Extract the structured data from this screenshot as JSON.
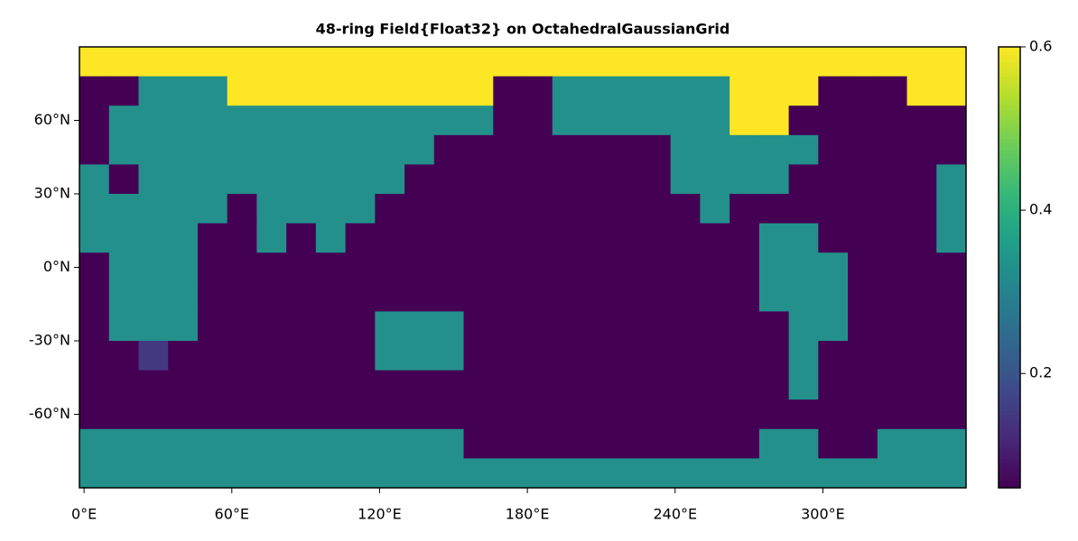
{
  "chart_data": {
    "type": "heatmap",
    "title": "48-ring Field{Float32} on OctahedralGaussianGrid",
    "xbins": [
      -1.875,
      10.125,
      22.125,
      34.125,
      46.125,
      58.125,
      70.125,
      82.125,
      94.125,
      106.125,
      118.125,
      130.125,
      142.125,
      154.125,
      166.125,
      178.125,
      190.125,
      202.125,
      214.125,
      226.125,
      238.125,
      250.125,
      262.125,
      274.125,
      286.125,
      298.125,
      310.125,
      322.125,
      334.125,
      346.125,
      358.125
    ],
    "ybins": [
      90,
      78,
      66,
      54,
      42,
      30,
      18,
      6,
      -6,
      -18,
      -30,
      -42,
      -54,
      -66,
      -78,
      -90
    ],
    "values": [
      [
        0.6,
        0.6,
        0.6,
        0.6,
        0.6,
        0.6,
        0.6,
        0.6,
        0.6,
        0.6,
        0.6,
        0.6,
        0.6,
        0.6,
        0.6,
        0.6,
        0.6,
        0.6,
        0.6,
        0.6,
        0.6,
        0.6,
        0.6,
        0.6,
        0.6,
        0.6,
        0.6,
        0.6,
        0.6,
        0.6
      ],
      [
        0.06,
        0.06,
        0.33,
        0.33,
        0.33,
        0.6,
        0.6,
        0.6,
        0.6,
        0.6,
        0.6,
        0.6,
        0.6,
        0.6,
        0.06,
        0.06,
        0.33,
        0.33,
        0.33,
        0.33,
        0.33,
        0.33,
        0.6,
        0.6,
        0.6,
        0.06,
        0.06,
        0.06,
        0.6,
        0.6
      ],
      [
        0.06,
        0.33,
        0.33,
        0.33,
        0.33,
        0.33,
        0.33,
        0.33,
        0.33,
        0.33,
        0.33,
        0.33,
        0.33,
        0.33,
        0.06,
        0.06,
        0.33,
        0.33,
        0.33,
        0.33,
        0.33,
        0.33,
        0.6,
        0.6,
        0.06,
        0.06,
        0.06,
        0.06,
        0.06,
        0.06
      ],
      [
        0.06,
        0.33,
        0.33,
        0.33,
        0.33,
        0.33,
        0.33,
        0.33,
        0.33,
        0.33,
        0.33,
        0.33,
        0.06,
        0.06,
        0.06,
        0.06,
        0.06,
        0.06,
        0.06,
        0.06,
        0.33,
        0.33,
        0.33,
        0.33,
        0.33,
        0.06,
        0.06,
        0.06,
        0.06,
        0.06
      ],
      [
        0.33,
        0.06,
        0.33,
        0.33,
        0.33,
        0.33,
        0.33,
        0.33,
        0.33,
        0.33,
        0.33,
        0.06,
        0.06,
        0.06,
        0.06,
        0.06,
        0.06,
        0.06,
        0.06,
        0.06,
        0.33,
        0.33,
        0.33,
        0.33,
        0.06,
        0.06,
        0.06,
        0.06,
        0.06,
        0.33
      ],
      [
        0.33,
        0.33,
        0.33,
        0.33,
        0.33,
        0.06,
        0.33,
        0.33,
        0.33,
        0.33,
        0.06,
        0.06,
        0.06,
        0.06,
        0.06,
        0.06,
        0.06,
        0.06,
        0.06,
        0.06,
        0.06,
        0.33,
        0.06,
        0.06,
        0.06,
        0.06,
        0.06,
        0.06,
        0.06,
        0.33
      ],
      [
        0.33,
        0.33,
        0.33,
        0.33,
        0.06,
        0.06,
        0.33,
        0.06,
        0.33,
        0.06,
        0.06,
        0.06,
        0.06,
        0.06,
        0.06,
        0.06,
        0.06,
        0.06,
        0.06,
        0.06,
        0.06,
        0.06,
        0.06,
        0.33,
        0.33,
        0.06,
        0.06,
        0.06,
        0.06,
        0.33
      ],
      [
        0.06,
        0.33,
        0.33,
        0.33,
        0.06,
        0.06,
        0.06,
        0.06,
        0.06,
        0.06,
        0.06,
        0.06,
        0.06,
        0.06,
        0.06,
        0.06,
        0.06,
        0.06,
        0.06,
        0.06,
        0.06,
        0.06,
        0.06,
        0.33,
        0.33,
        0.33,
        0.06,
        0.06,
        0.06,
        0.06
      ],
      [
        0.06,
        0.33,
        0.33,
        0.33,
        0.06,
        0.06,
        0.06,
        0.06,
        0.06,
        0.06,
        0.06,
        0.06,
        0.06,
        0.06,
        0.06,
        0.06,
        0.06,
        0.06,
        0.06,
        0.06,
        0.06,
        0.06,
        0.06,
        0.33,
        0.33,
        0.33,
        0.06,
        0.06,
        0.06,
        0.06
      ],
      [
        0.06,
        0.33,
        0.33,
        0.33,
        0.06,
        0.06,
        0.06,
        0.06,
        0.06,
        0.06,
        0.33,
        0.33,
        0.33,
        0.06,
        0.06,
        0.06,
        0.06,
        0.06,
        0.06,
        0.06,
        0.06,
        0.06,
        0.06,
        0.06,
        0.33,
        0.33,
        0.06,
        0.06,
        0.06,
        0.06
      ],
      [
        0.06,
        0.06,
        0.15,
        0.06,
        0.06,
        0.06,
        0.06,
        0.06,
        0.06,
        0.06,
        0.33,
        0.33,
        0.33,
        0.06,
        0.06,
        0.06,
        0.06,
        0.06,
        0.06,
        0.06,
        0.06,
        0.06,
        0.06,
        0.06,
        0.33,
        0.06,
        0.06,
        0.06,
        0.06,
        0.06
      ],
      [
        0.06,
        0.06,
        0.06,
        0.06,
        0.06,
        0.06,
        0.06,
        0.06,
        0.06,
        0.06,
        0.06,
        0.06,
        0.06,
        0.06,
        0.06,
        0.06,
        0.06,
        0.06,
        0.06,
        0.06,
        0.06,
        0.06,
        0.06,
        0.06,
        0.33,
        0.06,
        0.06,
        0.06,
        0.06,
        0.06
      ],
      [
        0.06,
        0.06,
        0.06,
        0.06,
        0.06,
        0.06,
        0.06,
        0.06,
        0.06,
        0.06,
        0.06,
        0.06,
        0.06,
        0.06,
        0.06,
        0.06,
        0.06,
        0.06,
        0.06,
        0.06,
        0.06,
        0.06,
        0.06,
        0.06,
        0.06,
        0.06,
        0.06,
        0.06,
        0.06,
        0.06
      ],
      [
        0.33,
        0.33,
        0.33,
        0.33,
        0.33,
        0.33,
        0.33,
        0.33,
        0.33,
        0.33,
        0.33,
        0.33,
        0.33,
        0.06,
        0.06,
        0.06,
        0.06,
        0.06,
        0.06,
        0.06,
        0.06,
        0.06,
        0.06,
        0.33,
        0.33,
        0.06,
        0.06,
        0.33,
        0.33,
        0.33
      ],
      [
        0.33,
        0.33,
        0.33,
        0.33,
        0.33,
        0.33,
        0.33,
        0.33,
        0.33,
        0.33,
        0.33,
        0.33,
        0.33,
        0.33,
        0.33,
        0.33,
        0.33,
        0.33,
        0.33,
        0.33,
        0.33,
        0.33,
        0.33,
        0.33,
        0.33,
        0.33,
        0.33,
        0.33,
        0.33,
        0.33
      ]
    ],
    "xlim": [
      -1.875,
      358.125
    ],
    "ylim": [
      -90,
      90
    ],
    "xticks": [
      {
        "value": 0,
        "label": "0°E"
      },
      {
        "value": 60,
        "label": "60°E"
      },
      {
        "value": 120,
        "label": "120°E"
      },
      {
        "value": 180,
        "label": "180°E"
      },
      {
        "value": 240,
        "label": "240°E"
      },
      {
        "value": 300,
        "label": "300°E"
      }
    ],
    "yticks": [
      {
        "value": -60,
        "label": "-60°N"
      },
      {
        "value": -30,
        "label": "-30°N"
      },
      {
        "value": 0,
        "label": "0°N"
      },
      {
        "value": 30,
        "label": "30°N"
      },
      {
        "value": 60,
        "label": "60°N"
      }
    ],
    "colormap": "viridis",
    "clim": [
      0.06,
      0.6
    ],
    "colorbar_ticks": [
      0.2,
      0.4,
      0.6
    ]
  }
}
